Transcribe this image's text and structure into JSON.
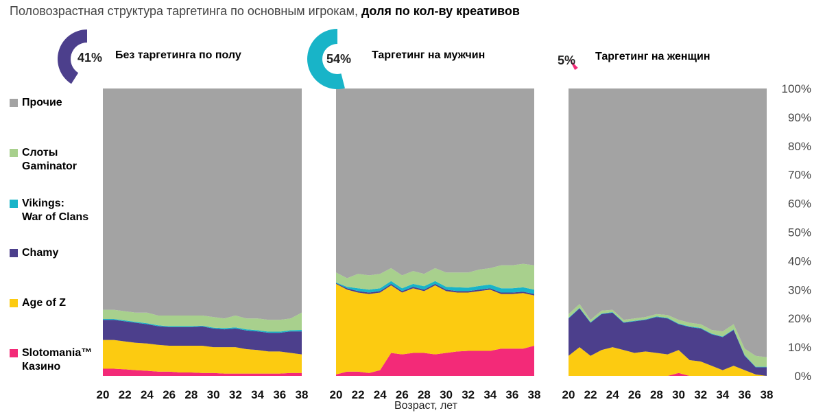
{
  "title": {
    "regular": "Половозрастная структура таргетинга по основным игрокам,",
    "bold": "доля по кол-ву креативов"
  },
  "colors": {
    "Прочие": "#a3a3a3",
    "Слоты Gaminator": "#a8d08d",
    "Vikings: War of Clans": "#18b4c8",
    "Chamy": "#4c3f8c",
    "Age of Z": "#fccb11",
    "Slotomania™ Казино": "#f32a78"
  },
  "legend": [
    {
      "key": "Прочие",
      "label": "Прочие"
    },
    {
      "key": "Слоты Gaminator",
      "label": "Слоты\nGaminator"
    },
    {
      "key": "Vikings: War of Clans",
      "label": "Vikings:\nWar of Clans"
    },
    {
      "key": "Chamy",
      "label": "Chamy"
    },
    {
      "key": "Age of Z",
      "label": "Age of Z"
    },
    {
      "key": "Slotomania™ Казино",
      "label": "Slotomania™\nКазино"
    }
  ],
  "summary": [
    {
      "percent_label": "41%",
      "value": 41,
      "label": "Без таргетинга по полу",
      "color": "#4c3f8c"
    },
    {
      "percent_label": "54%",
      "value": 54,
      "label": "Таргетинг на мужчин",
      "color": "#18b4c8"
    },
    {
      "percent_label": "5%",
      "value": 5,
      "label": "Таргетинг на женщин",
      "color": "#f32a78"
    }
  ],
  "y_ticks": [
    "0%",
    "10%",
    "20%",
    "30%",
    "40%",
    "50%",
    "60%",
    "70%",
    "80%",
    "90%",
    "100%"
  ],
  "x_ticks": [
    "20",
    "22",
    "24",
    "26",
    "28",
    "30",
    "32",
    "34",
    "36",
    "38"
  ],
  "xlabel": "Возраст, лет",
  "chart_data": [
    {
      "type": "area",
      "stacked": true,
      "title": "Без таргетинга по полу",
      "x": [
        20,
        21,
        22,
        23,
        24,
        25,
        26,
        27,
        28,
        29,
        30,
        31,
        32,
        33,
        34,
        35,
        36,
        37,
        38
      ],
      "ylim": [
        0,
        100
      ],
      "series": [
        {
          "name": "Slotomania™ Казино",
          "values": [
            2.5,
            2.5,
            2.3,
            2,
            1.8,
            1.5,
            1.5,
            1.2,
            1.2,
            1,
            1,
            0.8,
            0.8,
            0.8,
            0.8,
            0.8,
            0.8,
            1,
            1
          ]
        },
        {
          "name": "Age of Z",
          "values": [
            10,
            10,
            9.7,
            9.5,
            9.5,
            9.3,
            9,
            9.3,
            9.3,
            9.5,
            9,
            9.2,
            9.2,
            8.5,
            8.2,
            7.7,
            7.7,
            7,
            6.5
          ]
        },
        {
          "name": "Chamy",
          "values": [
            7,
            7,
            7,
            7,
            6.7,
            6.5,
            6.5,
            6.5,
            6.5,
            6.7,
            6.5,
            6.2,
            6.5,
            6.5,
            6.5,
            6.5,
            6.5,
            7.5,
            8
          ]
        },
        {
          "name": "Vikings: War of Clans",
          "values": [
            0.3,
            0.3,
            0.3,
            0.3,
            0.3,
            0.3,
            0.3,
            0.3,
            0.3,
            0.3,
            0.3,
            0.4,
            0.4,
            0.4,
            0.4,
            0.4,
            0.4,
            0.4,
            0.5
          ]
        },
        {
          "name": "Слоты Gaminator",
          "values": [
            3.2,
            3.2,
            3.2,
            3.2,
            3.7,
            3.4,
            3.7,
            3.7,
            3.7,
            3.5,
            3.7,
            3.4,
            4.1,
            3.8,
            4.1,
            4.1,
            4.1,
            4.1,
            6
          ]
        },
        {
          "name": "Прочие",
          "values": [
            77,
            77,
            77.5,
            78,
            78,
            79,
            79,
            79,
            79,
            79,
            79.5,
            80,
            79,
            80,
            80,
            80.5,
            80.5,
            80,
            78
          ]
        }
      ]
    },
    {
      "type": "area",
      "stacked": true,
      "title": "Таргетинг на мужчин",
      "x": [
        20,
        21,
        22,
        23,
        24,
        25,
        26,
        27,
        28,
        29,
        30,
        31,
        32,
        33,
        34,
        35,
        36,
        37,
        38
      ],
      "ylim": [
        0,
        100
      ],
      "series": [
        {
          "name": "Slotomania™ Казино",
          "values": [
            0.5,
            1.5,
            1.5,
            1,
            2,
            8,
            7.5,
            8,
            8,
            7.5,
            8,
            8.5,
            8.7,
            8.7,
            8.7,
            9.5,
            9.5,
            9.5,
            10.5
          ]
        },
        {
          "name": "Age of Z",
          "values": [
            31.5,
            28.5,
            27.5,
            27.5,
            27,
            23.5,
            21.5,
            22.5,
            21.5,
            24,
            21.5,
            20.5,
            20.3,
            20.8,
            21.3,
            19,
            19,
            19.3,
            17.5
          ]
        },
        {
          "name": "Chamy",
          "values": [
            0.3,
            0.5,
            0.5,
            0.5,
            0.5,
            0.5,
            0.5,
            0.5,
            0.5,
            0.5,
            0.5,
            0.5,
            0.5,
            0.5,
            0.5,
            0.5,
            0.5,
            0.5,
            0.5
          ]
        },
        {
          "name": "Vikings: War of Clans",
          "values": [
            0.2,
            0.5,
            1,
            1,
            1,
            1,
            1,
            1,
            1.2,
            1,
            1,
            1.3,
            1.2,
            1.3,
            1.3,
            1.5,
            1.5,
            1.5,
            1.5
          ]
        },
        {
          "name": "Слоты Gaminator",
          "values": [
            3.5,
            3,
            5,
            5,
            5,
            4.5,
            4.5,
            4.5,
            4.3,
            4.5,
            5,
            5.2,
            5.3,
            5.7,
            5.7,
            8,
            8,
            8.2,
            8.5
          ]
        },
        {
          "name": "Прочие",
          "values": [
            64,
            66,
            64.5,
            65,
            64.5,
            62.5,
            65,
            63.5,
            64.5,
            62.5,
            64,
            64,
            64,
            63,
            62.5,
            61.5,
            61.5,
            61,
            61.5
          ]
        }
      ]
    },
    {
      "type": "area",
      "stacked": true,
      "title": "Таргетинг на женщин",
      "x": [
        20,
        21,
        22,
        23,
        24,
        25,
        26,
        27,
        28,
        29,
        30,
        31,
        32,
        33,
        34,
        35,
        36,
        37,
        38
      ],
      "ylim": [
        0,
        100
      ],
      "series": [
        {
          "name": "Slotomania™ Казино",
          "values": [
            0,
            0,
            0,
            0,
            0,
            0,
            0,
            0,
            0,
            0,
            1,
            0,
            0,
            0,
            0,
            0,
            0,
            0,
            0
          ]
        },
        {
          "name": "Age of Z",
          "values": [
            7,
            10,
            7,
            9,
            10,
            9,
            8,
            8.5,
            8,
            7.5,
            8,
            5.5,
            5,
            3.5,
            2,
            3.5,
            2,
            0.5,
            0
          ]
        },
        {
          "name": "Chamy",
          "values": [
            13,
            13.5,
            11.5,
            12.5,
            12,
            9.5,
            11,
            11,
            12.5,
            12.5,
            9,
            11.5,
            11.5,
            11,
            11.5,
            12.5,
            5,
            2.5,
            3
          ]
        },
        {
          "name": "Vikings: War of Clans",
          "values": [
            0.2,
            0.2,
            0.2,
            0.2,
            0.2,
            0.2,
            0.2,
            0.2,
            0.2,
            0.2,
            0.2,
            0.2,
            0.2,
            0.2,
            0.2,
            0.2,
            0.2,
            0.2,
            0.2
          ]
        },
        {
          "name": "Слоты Gaminator",
          "values": [
            1.3,
            1.3,
            0.8,
            1,
            0.8,
            0.8,
            0.8,
            0.8,
            0.8,
            1,
            1.3,
            1.3,
            1.3,
            1.3,
            1.8,
            1.8,
            2.3,
            3.8,
            3.3
          ]
        },
        {
          "name": "Прочие",
          "values": [
            78.5,
            75,
            80.5,
            77.3,
            77,
            80.5,
            80,
            79.5,
            78.5,
            78.8,
            80.5,
            81.5,
            82,
            84,
            84.5,
            82,
            90.5,
            93,
            93.5
          ]
        }
      ]
    }
  ]
}
